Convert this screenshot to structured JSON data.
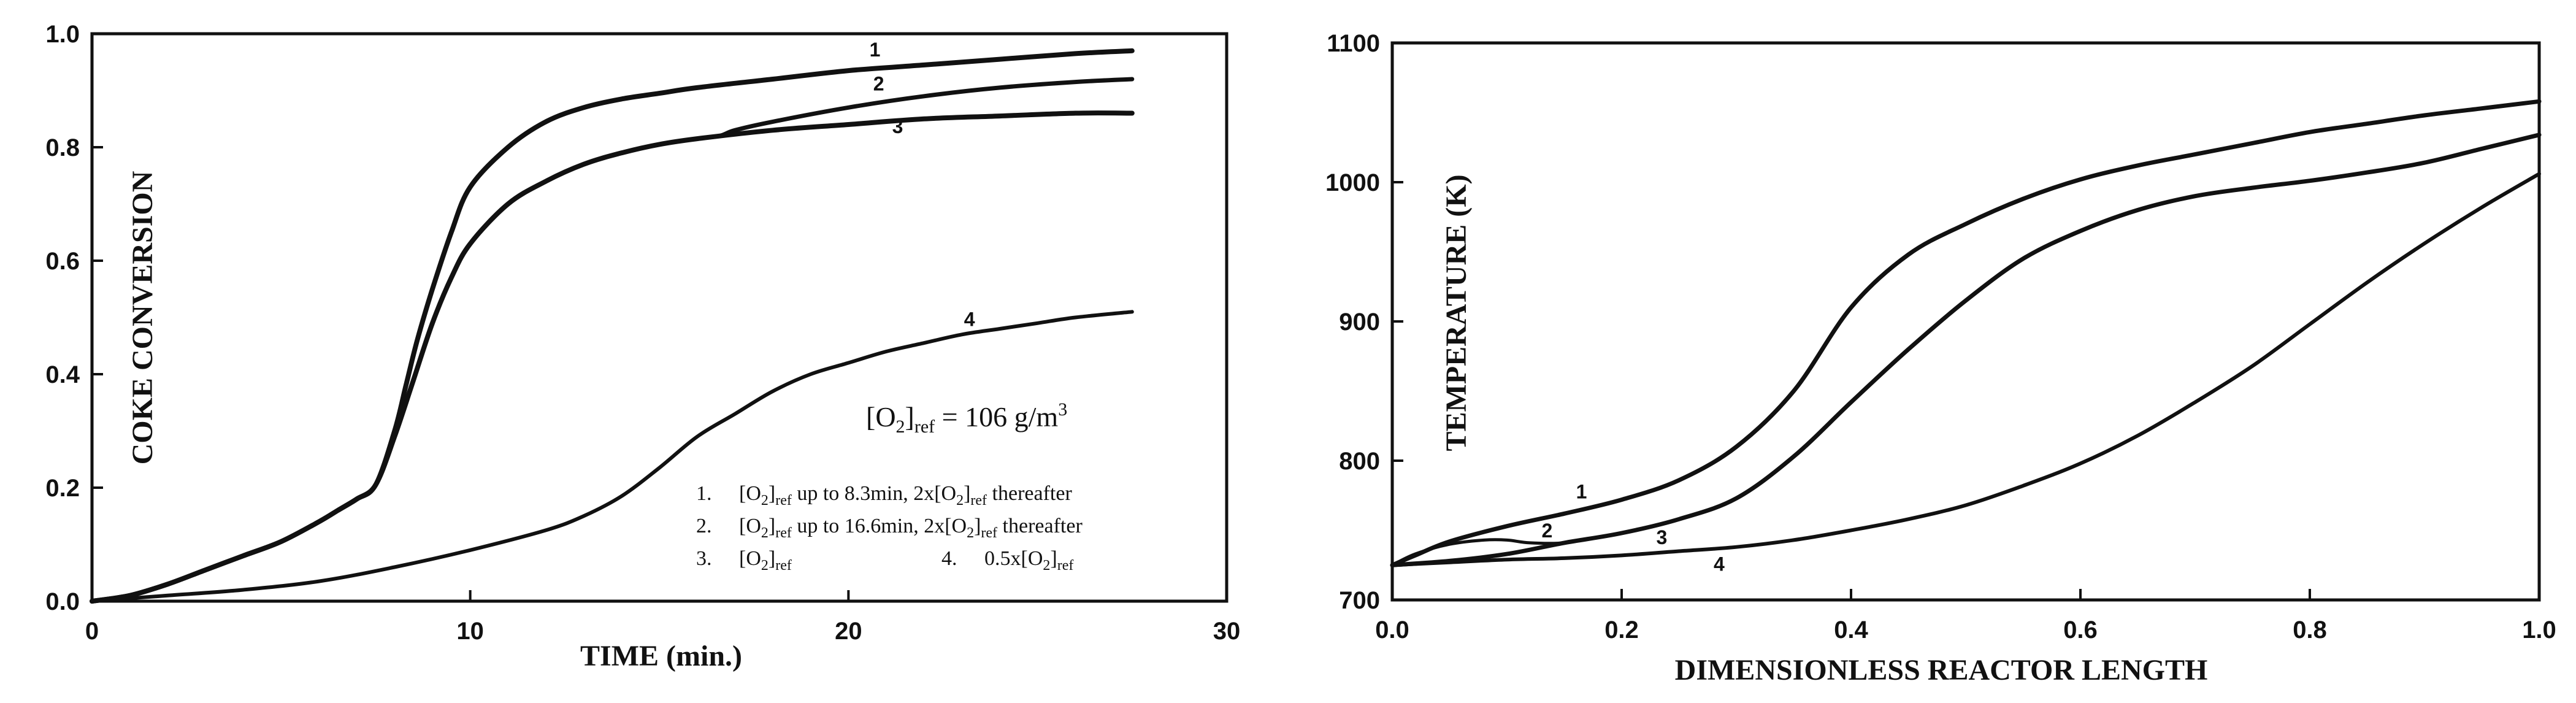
{
  "chart_data": [
    {
      "type": "line",
      "title": "",
      "xlabel": "TIME (min.)",
      "ylabel": "COKE CONVERSION",
      "xlim": [
        0,
        30
      ],
      "ylim": [
        0,
        1
      ],
      "x_ticks": [
        0,
        10,
        20,
        30
      ],
      "x_tick_labels": [
        "0",
        "10",
        "20",
        "30"
      ],
      "y_ticks": [
        0,
        0.2,
        0.4,
        0.6,
        0.8,
        1.0
      ],
      "y_tick_labels": [
        "0.0",
        "0.2",
        "0.4",
        "0.6",
        "0.8",
        "1.0"
      ],
      "grid": false,
      "series": [
        {
          "name": "1",
          "x": [
            0,
            1,
            2,
            3,
            4,
            5,
            6,
            6.5,
            7,
            7.5,
            8,
            8.3,
            8.6,
            9,
            9.5,
            10,
            11,
            12,
            13,
            14,
            15,
            16,
            18,
            20,
            22,
            24,
            26,
            27.5
          ],
          "y": [
            0,
            0.01,
            0.03,
            0.055,
            0.08,
            0.105,
            0.14,
            0.16,
            0.18,
            0.205,
            0.3,
            0.38,
            0.46,
            0.55,
            0.65,
            0.73,
            0.8,
            0.845,
            0.87,
            0.885,
            0.895,
            0.905,
            0.92,
            0.935,
            0.945,
            0.955,
            0.965,
            0.97
          ]
        },
        {
          "name": "2",
          "x": [
            0,
            1,
            2,
            3,
            4,
            5,
            6,
            6.5,
            7,
            7.5,
            8,
            8.5,
            9,
            9.5,
            10,
            11,
            12,
            13,
            14,
            15,
            16,
            16.6,
            17,
            18,
            20,
            22,
            24,
            26,
            27.5
          ],
          "y": [
            0,
            0.01,
            0.03,
            0.055,
            0.08,
            0.105,
            0.14,
            0.16,
            0.18,
            0.205,
            0.29,
            0.39,
            0.49,
            0.57,
            0.63,
            0.7,
            0.74,
            0.77,
            0.79,
            0.805,
            0.815,
            0.82,
            0.83,
            0.845,
            0.87,
            0.89,
            0.905,
            0.915,
            0.92
          ]
        },
        {
          "name": "3",
          "x": [
            0,
            1,
            2,
            3,
            4,
            5,
            6,
            6.5,
            7,
            7.5,
            8,
            8.5,
            9,
            9.5,
            10,
            11,
            12,
            13,
            14,
            15,
            16,
            18,
            20,
            22,
            24,
            26,
            27.5
          ],
          "y": [
            0,
            0.01,
            0.03,
            0.055,
            0.08,
            0.105,
            0.14,
            0.16,
            0.18,
            0.205,
            0.29,
            0.39,
            0.49,
            0.57,
            0.63,
            0.7,
            0.74,
            0.77,
            0.79,
            0.805,
            0.815,
            0.83,
            0.84,
            0.85,
            0.855,
            0.86,
            0.86
          ]
        },
        {
          "name": "4",
          "x": [
            0,
            2,
            4,
            6,
            8,
            10,
            12,
            13,
            14,
            15,
            16,
            17,
            18,
            19,
            20,
            21,
            22,
            23,
            24,
            25,
            26,
            27.5
          ],
          "y": [
            0,
            0.01,
            0.02,
            0.035,
            0.06,
            0.09,
            0.125,
            0.15,
            0.185,
            0.235,
            0.29,
            0.33,
            0.37,
            0.4,
            0.42,
            0.44,
            0.455,
            0.47,
            0.48,
            0.49,
            0.5,
            0.51
          ]
        }
      ],
      "curve_labels": [
        {
          "text": "1",
          "x": 20.7,
          "y": 0.96
        },
        {
          "text": "2",
          "x": 20.8,
          "y": 0.9
        },
        {
          "text": "3",
          "x": 21.3,
          "y": 0.825
        },
        {
          "text": "4",
          "x": 23.2,
          "y": 0.485
        }
      ],
      "annotations": {
        "ref_prefix": "[O",
        "ref_sub_2": "2",
        "ref_close": "]",
        "ref_sub_ref": "ref",
        "ref_eq": " = 106 g/m",
        "ref_sup": "3",
        "legend": [
          {
            "num": "1.",
            "t1": "[O",
            "s1": "2",
            "t2": "]",
            "s2": "ref",
            "t3": " up to 8.3min, 2x[O",
            "s3": "2",
            "t4": "]",
            "s4": "ref",
            "t5": " thereafter"
          },
          {
            "num": "2.",
            "t1": "[O",
            "s1": "2",
            "t2": "]",
            "s2": "ref",
            "t3": " up to 16.6min, 2x[O",
            "s3": "2",
            "t4": "]",
            "s4": "ref",
            "t5": " thereafter"
          },
          {
            "num": "3.",
            "t1": "[O",
            "s1": "2",
            "t2": "]",
            "s2": "ref"
          },
          {
            "num": "4.",
            "t1": "0.5x[O",
            "s1": "2",
            "t2": "]",
            "s2": "ref"
          }
        ]
      }
    },
    {
      "type": "line",
      "title": "",
      "xlabel": "DIMENSIONLESS REACTOR LENGTH",
      "ylabel": "TEMPERATURE (K)",
      "xlim": [
        0,
        1
      ],
      "ylim": [
        700,
        1100
      ],
      "x_ticks": [
        0,
        0.2,
        0.4,
        0.6,
        0.8,
        1.0
      ],
      "x_tick_labels": [
        "0.0",
        "0.2",
        "0.4",
        "0.6",
        "0.8",
        "1.0"
      ],
      "y_ticks": [
        700,
        800,
        900,
        1000,
        1100
      ],
      "y_tick_labels": [
        "700",
        "800",
        "900",
        "1000",
        "1100"
      ],
      "grid": false,
      "series": [
        {
          "name": "1",
          "x": [
            0,
            0.02,
            0.05,
            0.1,
            0.15,
            0.2,
            0.25,
            0.3,
            0.35,
            0.4,
            0.45,
            0.5,
            0.55,
            0.6,
            0.65,
            0.7,
            0.75,
            0.8,
            0.85,
            0.9,
            0.95,
            1.0
          ],
          "y": [
            725,
            732,
            742,
            753,
            762,
            772,
            786,
            810,
            850,
            910,
            948,
            970,
            988,
            1002,
            1012,
            1020,
            1028,
            1036,
            1042,
            1048,
            1053,
            1058
          ]
        },
        {
          "name": "2",
          "x": [
            0,
            0.02,
            0.05,
            0.08,
            0.1,
            0.12,
            0.15,
            0.18,
            0.2,
            0.25,
            0.3,
            0.35,
            0.4,
            0.45,
            0.5,
            0.55,
            0.6,
            0.65,
            0.7,
            0.75,
            0.8,
            0.85,
            0.9,
            0.95,
            1.0
          ],
          "y": [
            725,
            733,
            740,
            743,
            743,
            741,
            741,
            745,
            748,
            758,
            773,
            803,
            842,
            880,
            915,
            945,
            965,
            980,
            990,
            996,
            1001,
            1007,
            1014,
            1024,
            1034
          ]
        },
        {
          "name": "3",
          "x": [
            0,
            0.05,
            0.1,
            0.15,
            0.2,
            0.25,
            0.3,
            0.35,
            0.4,
            0.45,
            0.5,
            0.55,
            0.6,
            0.65,
            0.7,
            0.75,
            0.8,
            0.85,
            0.9,
            0.95,
            1.0
          ],
          "y": [
            725,
            728,
            733,
            741,
            748,
            758,
            773,
            803,
            842,
            880,
            915,
            945,
            965,
            980,
            990,
            996,
            1001,
            1007,
            1014,
            1024,
            1034
          ]
        },
        {
          "name": "4",
          "x": [
            0,
            0.05,
            0.1,
            0.15,
            0.2,
            0.25,
            0.3,
            0.35,
            0.4,
            0.45,
            0.5,
            0.55,
            0.6,
            0.65,
            0.7,
            0.75,
            0.8,
            0.85,
            0.9,
            0.95,
            1.0
          ],
          "y": [
            725,
            727,
            729,
            730,
            732,
            735,
            738,
            743,
            750,
            758,
            768,
            782,
            798,
            818,
            842,
            868,
            898,
            928,
            956,
            982,
            1006
          ]
        }
      ],
      "curve_labels": [
        {
          "text": "1",
          "x": 0.165,
          "y": 773
        },
        {
          "text": "2",
          "x": 0.135,
          "y": 745
        },
        {
          "text": "3",
          "x": 0.235,
          "y": 740
        },
        {
          "text": "4",
          "x": 0.285,
          "y": 721
        }
      ]
    }
  ]
}
